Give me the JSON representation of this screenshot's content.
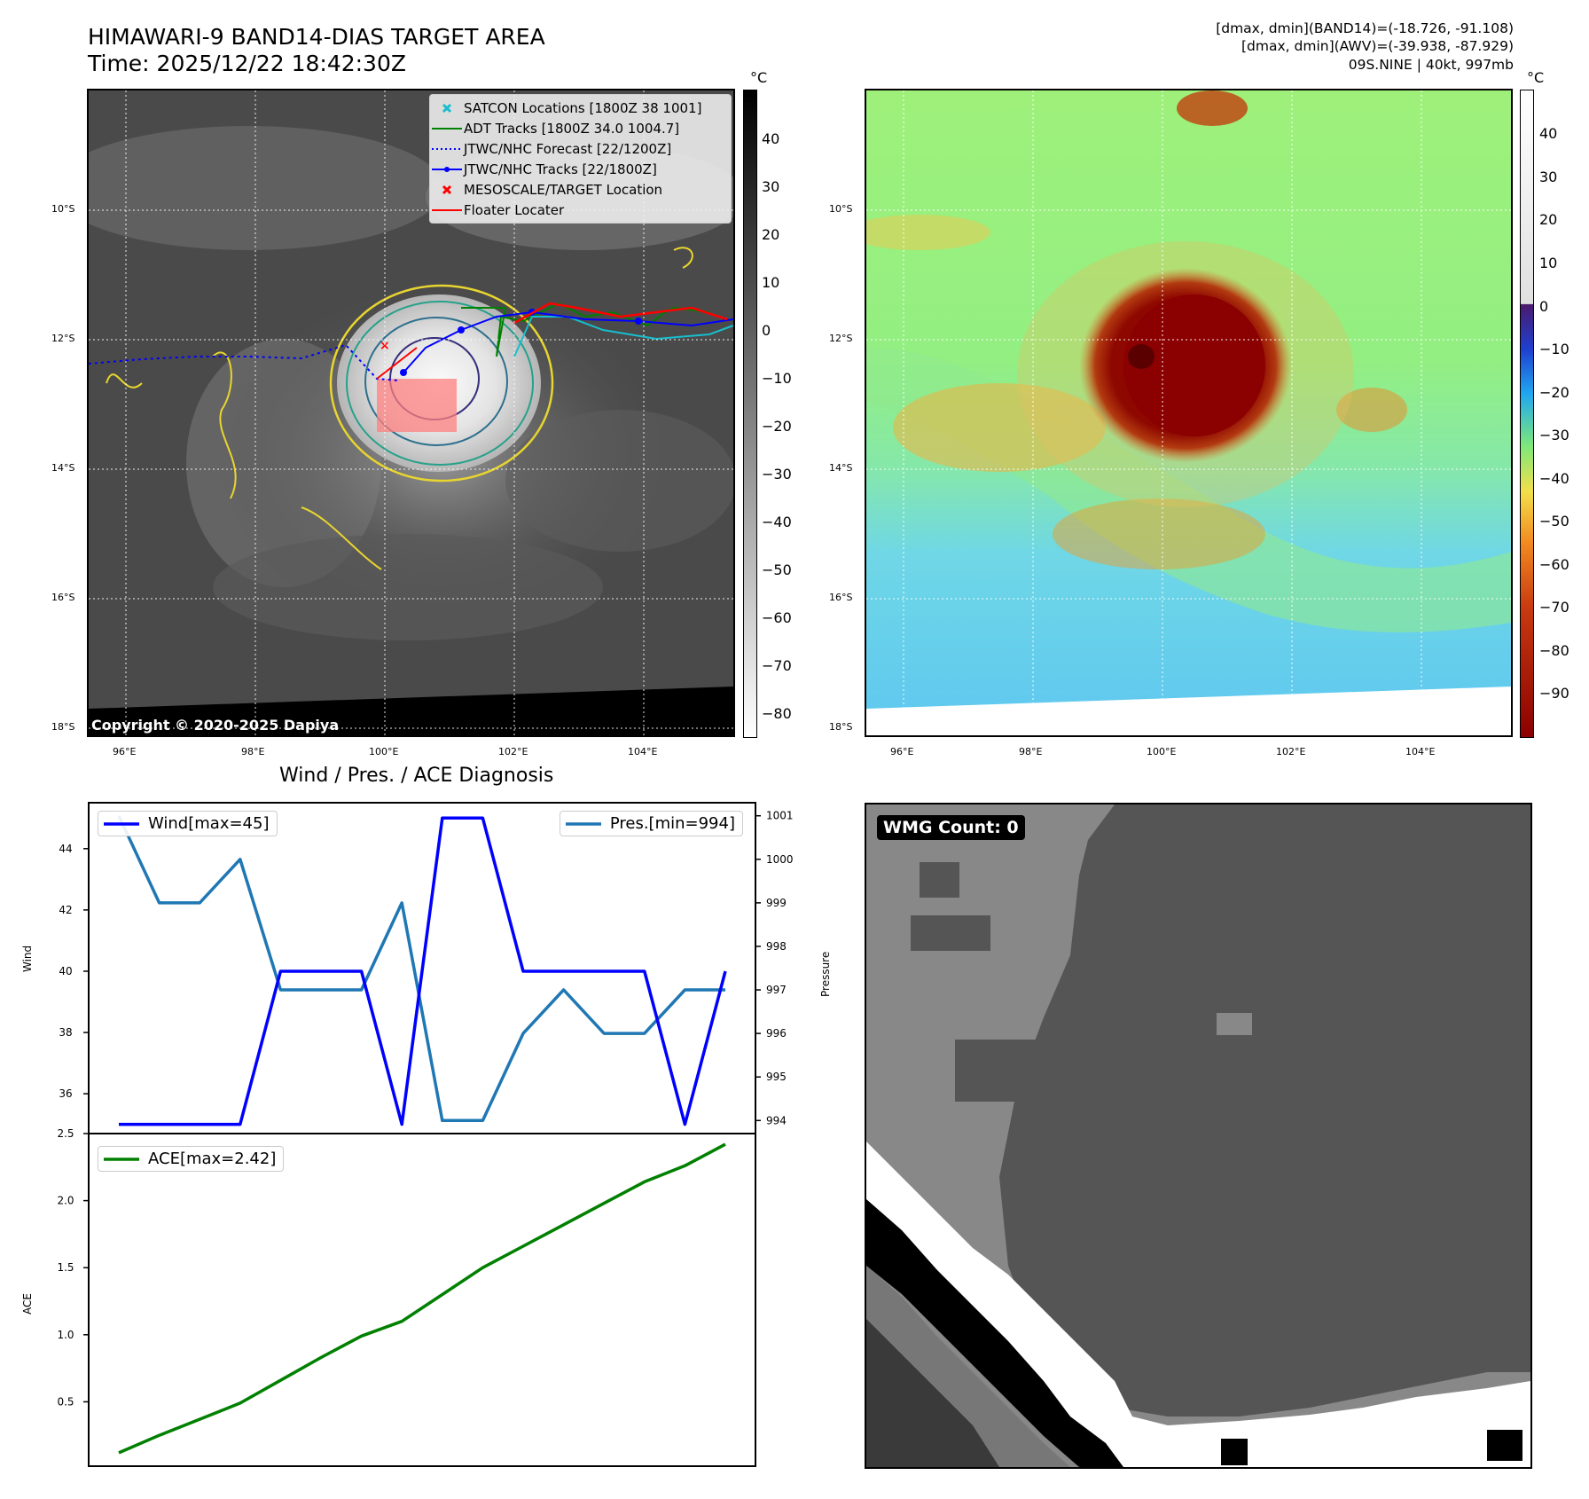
{
  "header": {
    "title_line1": "HIMAWARI-9 BAND14-DIAS TARGET AREA",
    "title_line2": "Time: 2025/12/22 18:42:30Z",
    "info_line1": "[dmax, dmin](BAND14)=(-18.726, -91.108)",
    "info_line2": "[dmax, dmin](AWV)=(-39.938, -87.929)",
    "info_line3": "09S.NINE | 40kt, 997mb"
  },
  "map": {
    "lat_labels": [
      "10°S",
      "12°S",
      "14°S",
      "16°S",
      "18°S"
    ],
    "lon_labels": [
      "96°E",
      "98°E",
      "100°E",
      "102°E",
      "104°E"
    ],
    "copyright": "Copyright © 2020-2025 Dapiya",
    "legend": [
      {
        "label": "SATCON Locations [1800Z 38 1001]",
        "icon": "cyan-x-marker",
        "color": "#17becf"
      },
      {
        "label": "ADT Tracks [1800Z 34.0 1004.7]",
        "icon": "green-line",
        "color": "#008000"
      },
      {
        "label": "JTWC/NHC Forecast [22/1200Z]",
        "icon": "blue-dotted-line",
        "color": "#0000ff"
      },
      {
        "label": "JTWC/NHC Tracks [22/1800Z]",
        "icon": "blue-line-dot",
        "color": "#0000ff"
      },
      {
        "label": "MESOSCALE/TARGET Location",
        "icon": "red-x-marker",
        "color": "#ff0000"
      },
      {
        "label": "Floater Locater",
        "icon": "red-line",
        "color": "#ff0000"
      }
    ]
  },
  "colorbar_left": {
    "unit": "°C",
    "ticks": [
      "40",
      "30",
      "20",
      "10",
      "0",
      "−10",
      "−20",
      "−30",
      "−40",
      "−50",
      "−60",
      "−70",
      "−80"
    ]
  },
  "colorbar_right": {
    "unit": "°C",
    "ticks": [
      "40",
      "30",
      "20",
      "10",
      "0",
      "−10",
      "−20",
      "−30",
      "−40",
      "−50",
      "−60",
      "−70",
      "−80",
      "−90"
    ]
  },
  "wmg": {
    "label": "WMG Count: 0"
  },
  "chart_data": [
    {
      "type": "line",
      "title": "Wind / Pres. / ACE Diagnosis",
      "ylabel": "Wind",
      "y2label": "Pressure",
      "ylim": [
        34.7,
        45.5
      ],
      "y2lim": [
        993.7,
        1001.3
      ],
      "yticks": [
        36,
        38,
        40,
        42,
        44
      ],
      "y2ticks": [
        994,
        995,
        996,
        997,
        998,
        999,
        1000,
        1001
      ],
      "series": [
        {
          "name": "Wind[max=45]",
          "axis": "left",
          "color": "#0000ff",
          "values": [
            35,
            35,
            35,
            35,
            40,
            40,
            40,
            35,
            45,
            45,
            40,
            40,
            40,
            40,
            35,
            40
          ]
        },
        {
          "name": "Pres.[min=994]",
          "axis": "right",
          "color": "#1f77b4",
          "values": [
            1001,
            999,
            999,
            1000,
            997,
            997,
            997,
            999,
            994,
            994,
            996,
            997,
            996,
            996,
            997,
            997
          ]
        }
      ],
      "legend": [
        "top-left",
        "top-right"
      ]
    },
    {
      "type": "line",
      "ylabel": "ACE",
      "ylim": [
        0.02,
        2.5
      ],
      "yticks": [
        0.5,
        1.0,
        1.5,
        2.0,
        2.5
      ],
      "ytick_labels": [
        "0.5",
        "1.0",
        "1.5",
        "2.0",
        "2.5"
      ],
      "series": [
        {
          "name": "ACE[max=2.42]",
          "color": "#008000",
          "values": [
            0.12,
            0.25,
            0.37,
            0.49,
            0.66,
            0.83,
            0.99,
            1.1,
            1.3,
            1.5,
            1.66,
            1.82,
            1.98,
            2.14,
            2.26,
            2.42
          ]
        }
      ],
      "legend": "top-left"
    }
  ]
}
